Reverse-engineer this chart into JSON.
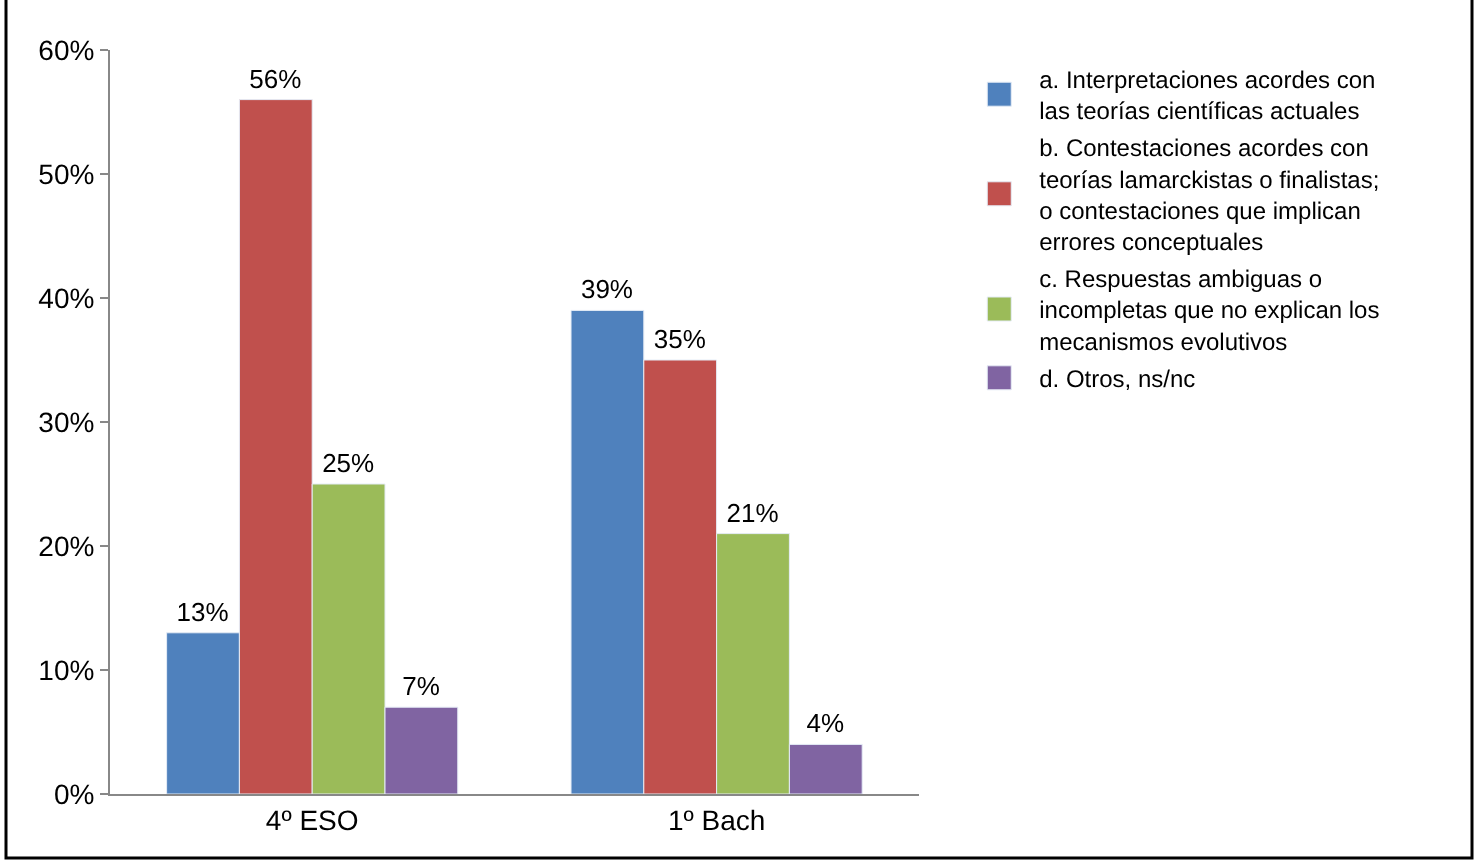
{
  "chart_data": {
    "type": "bar",
    "categories": [
      "4º ESO",
      "1º Bach"
    ],
    "series": [
      {
        "name": "a. Interpretaciones acordes con las teorías científicas actuales",
        "color": "#4f81bd",
        "values": [
          13,
          39
        ],
        "value_labels": [
          "13%",
          "39%"
        ]
      },
      {
        "name": "b. Contestaciones acordes con teorías lamarckistas o finalistas; o contestaciones que implican errores conceptuales",
        "color": "#c0504d",
        "values": [
          56,
          35
        ],
        "value_labels": [
          "56%",
          "35%"
        ]
      },
      {
        "name": "c. Respuestas ambiguas o incompletas que no explican los mecanismos evolutivos",
        "color": "#9bbb59",
        "values": [
          25,
          21
        ],
        "value_labels": [
          "25%",
          "21%"
        ]
      },
      {
        "name": "d. Otros, ns/nc",
        "color": "#8064a2",
        "values": [
          7,
          4
        ],
        "value_labels": [
          "7%",
          "4%"
        ]
      }
    ],
    "ylim": [
      0,
      60
    ],
    "yticks": [
      {
        "value": 0,
        "label": "0%"
      },
      {
        "value": 10,
        "label": "10%"
      },
      {
        "value": 20,
        "label": "20%"
      },
      {
        "value": 30,
        "label": "30%"
      },
      {
        "value": 40,
        "label": "40%"
      },
      {
        "value": 50,
        "label": "50%"
      },
      {
        "value": 60,
        "label": "60%"
      }
    ],
    "legend": "right"
  }
}
